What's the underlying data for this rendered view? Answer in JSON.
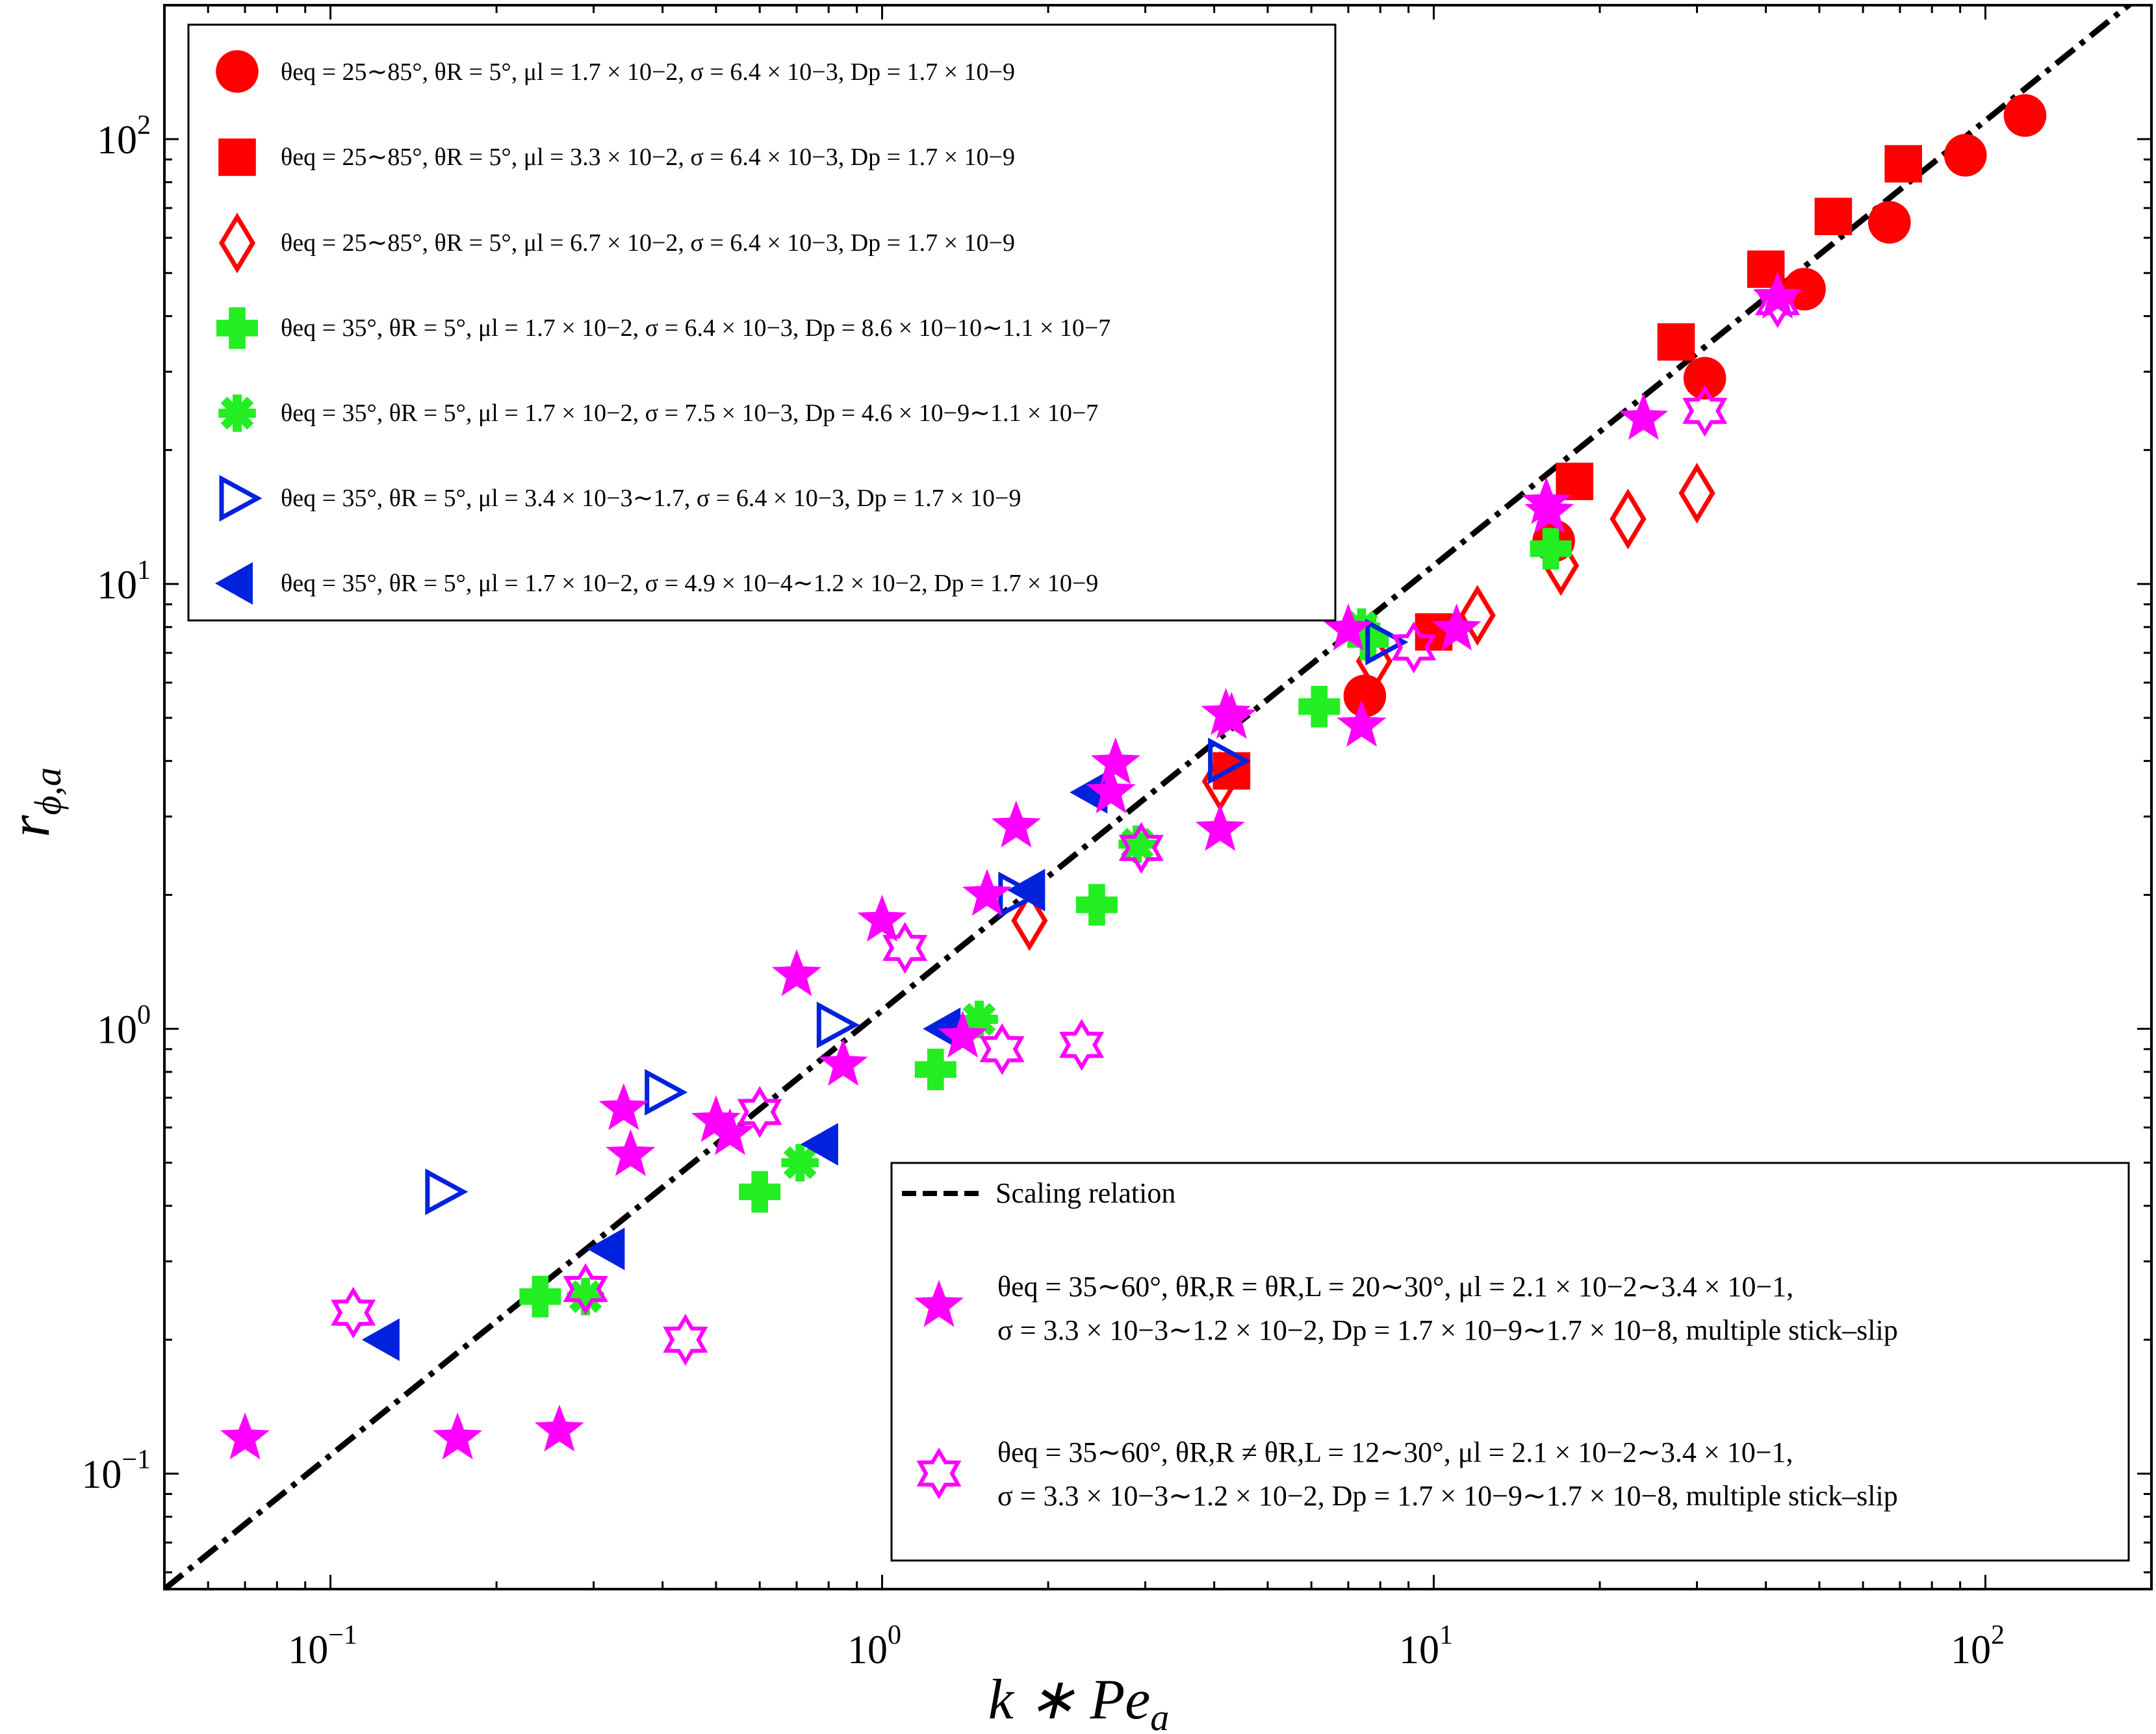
{
  "chart_data": {
    "type": "scatter",
    "xlabel": "k ∗ Pe",
    "xlabel_sub": "a",
    "ylabel": "r",
    "ylabel_sub": "ϕ,a",
    "x_scale": "log",
    "y_scale": "log",
    "xlim": [
      0.05,
      200
    ],
    "ylim": [
      0.055,
      200
    ],
    "x_ticks": [
      {
        "value": 0.1,
        "base": "10",
        "exp": "−1"
      },
      {
        "value": 1,
        "base": "10",
        "exp": "0"
      },
      {
        "value": 10,
        "base": "10",
        "exp": "1"
      },
      {
        "value": 100,
        "base": "10",
        "exp": "2"
      }
    ],
    "y_ticks": [
      {
        "value": 0.1,
        "base": "10",
        "exp": "−1"
      },
      {
        "value": 1,
        "base": "10",
        "exp": "0"
      },
      {
        "value": 10,
        "base": "10",
        "exp": "1"
      },
      {
        "value": 100,
        "base": "10",
        "exp": "2"
      }
    ],
    "grid": false,
    "scaling_line": {
      "label": "Scaling relation",
      "points": [
        [
          0.05,
          0.055
        ],
        [
          200,
          220
        ]
      ],
      "color": "#000000"
    },
    "series": [
      {
        "key": "s1",
        "marker": "circle",
        "color": "#ff0000",
        "filled": true,
        "label": "θeq = 25∼85°, θR = 5°, μl = 1.7 × 10−2, σ = 6.4 × 10−3, Dp = 1.7 × 10−9",
        "points": [
          [
            7.5,
            5.6
          ],
          [
            16.5,
            12.5
          ],
          [
            31,
            29
          ],
          [
            47,
            46
          ],
          [
            67,
            65
          ],
          [
            92,
            92
          ],
          [
            118,
            113
          ]
        ]
      },
      {
        "key": "s2",
        "marker": "square",
        "color": "#ff0000",
        "filled": true,
        "label": "θeq = 25∼85°, θR = 5°, μl = 3.3 × 10−2, σ = 6.4 × 10−3, Dp = 1.7 × 10−9",
        "points": [
          [
            4.3,
            3.8
          ],
          [
            10,
            7.8
          ],
          [
            18,
            17
          ],
          [
            27.5,
            35
          ],
          [
            40,
            51
          ],
          [
            53,
            67
          ],
          [
            71,
            88
          ]
        ]
      },
      {
        "key": "s3",
        "marker": "diamond",
        "color": "#ff0000",
        "filled": false,
        "label": "θeq = 25∼85°, θR = 5°, μl = 6.7 × 10−2, σ = 6.4 × 10−3, Dp = 1.7 × 10−9",
        "points": [
          [
            1.85,
            1.75
          ],
          [
            4.1,
            3.6
          ],
          [
            7.8,
            6.7
          ],
          [
            12,
            8.5
          ],
          [
            17,
            11
          ],
          [
            22.5,
            14
          ],
          [
            30,
            16
          ]
        ]
      },
      {
        "key": "s4",
        "marker": "plus",
        "color": "#22ee22",
        "filled": true,
        "label": "θeq = 35°, θR = 5°, μl = 1.7 × 10−2, σ = 6.4 × 10−3, Dp = 8.6 × 10−10∼1.1 × 10−7",
        "points": [
          [
            0.24,
            0.25
          ],
          [
            0.6,
            0.43
          ],
          [
            1.25,
            0.81
          ],
          [
            2.45,
            1.9
          ],
          [
            6.2,
            5.3
          ],
          [
            7.6,
            7.5
          ],
          [
            16.3,
            12
          ]
        ]
      },
      {
        "key": "s5",
        "marker": "asterisk",
        "color": "#22ee22",
        "filled": true,
        "label": "θeq = 35°, θR = 5°, μl = 1.7 × 10−2, σ = 7.5 × 10−3, Dp = 4.6 × 10−9∼1.1 × 10−7",
        "points": [
          [
            0.29,
            0.25
          ],
          [
            0.71,
            0.5
          ],
          [
            1.5,
            1.05
          ],
          [
            2.9,
            2.6
          ],
          [
            7.4,
            8
          ]
        ]
      },
      {
        "key": "s6",
        "marker": "tri-right",
        "color": "#0022dd",
        "filled": false,
        "label": "θeq = 35°, θR = 5°, μl = 3.4 × 10−3∼1.7, σ = 6.4 × 10−3, Dp = 1.7 × 10−9",
        "points": [
          [
            0.16,
            0.43
          ],
          [
            0.4,
            0.72
          ],
          [
            0.82,
            1.02
          ],
          [
            1.75,
            2.0
          ],
          [
            4.2,
            4.0
          ],
          [
            8.1,
            7.4
          ]
        ]
      },
      {
        "key": "s7",
        "marker": "tri-left",
        "color": "#0022dd",
        "filled": true,
        "label": "θeq = 35°, θR = 5°, μl = 1.7 × 10−2, σ = 4.9 × 10−4∼1.2 × 10−2, Dp = 1.7 × 10−9",
        "points": [
          [
            0.125,
            0.2
          ],
          [
            0.32,
            0.32
          ],
          [
            0.78,
            0.55
          ],
          [
            1.3,
            1.0
          ],
          [
            1.85,
            2.05
          ],
          [
            2.4,
            3.4
          ]
        ]
      },
      {
        "key": "s8",
        "marker": "star5",
        "color": "#ff00ff",
        "filled": true,
        "label_line1": "θeq = 35∼60°, θR,R = θR,L = 20∼30°, μl = 2.1 × 10−2∼3.4 × 10−1,",
        "label_line2": "σ = 3.3 × 10−3∼1.2 × 10−2, Dp = 1.7 × 10−9∼1.7 × 10−8, multiple stick–slip",
        "points": [
          [
            0.07,
            0.12
          ],
          [
            0.17,
            0.12
          ],
          [
            0.26,
            0.125
          ],
          [
            0.34,
            0.66
          ],
          [
            0.35,
            0.52
          ],
          [
            0.5,
            0.62
          ],
          [
            0.53,
            0.58
          ],
          [
            0.7,
            1.32
          ],
          [
            0.85,
            0.83
          ],
          [
            1.0,
            1.75
          ],
          [
            1.4,
            0.96
          ],
          [
            1.55,
            2.0
          ],
          [
            1.75,
            2.85
          ],
          [
            2.6,
            3.4
          ],
          [
            2.65,
            3.95
          ],
          [
            4.1,
            2.8
          ],
          [
            4.2,
            5.1
          ],
          [
            4.3,
            5.0
          ],
          [
            7.0,
            7.9
          ],
          [
            7.4,
            4.8
          ],
          [
            11,
            7.9
          ],
          [
            16,
            15.2
          ],
          [
            16.2,
            14.5
          ],
          [
            24,
            23.5
          ],
          [
            42,
            44
          ]
        ]
      },
      {
        "key": "s9",
        "marker": "star6",
        "color": "#ff00ff",
        "filled": false,
        "label_line1": "θeq = 35∼60°, θR,R ≠ θR,L = 12∼30°, μl = 2.1 × 10−2∼3.4 × 10−1,",
        "label_line2": "σ = 3.3 × 10−3∼1.2 × 10−2, Dp = 1.7 × 10−9∼1.7 × 10−8, multiple stick–slip",
        "points": [
          [
            0.11,
            0.23
          ],
          [
            0.29,
            0.26
          ],
          [
            0.44,
            0.2
          ],
          [
            0.6,
            0.65
          ],
          [
            1.1,
            1.52
          ],
          [
            1.65,
            0.9
          ],
          [
            2.3,
            0.92
          ],
          [
            2.95,
            2.55
          ],
          [
            9.2,
            7.2
          ],
          [
            31,
            24.5
          ],
          [
            42,
            43
          ]
        ]
      }
    ],
    "legend_upper_position": "top-left",
    "legend_lower_position": "bottom-right"
  }
}
